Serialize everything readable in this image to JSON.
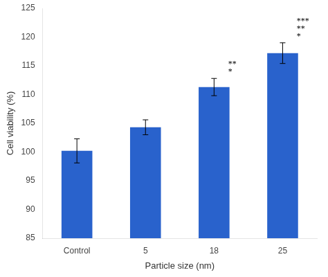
{
  "chart_data": {
    "type": "bar",
    "categories": [
      "Control",
      "5",
      "18",
      "25"
    ],
    "values": [
      100.2,
      104.3,
      111.3,
      117.2
    ],
    "errors": [
      2.1,
      1.3,
      1.5,
      1.8
    ],
    "color": "#2962cc",
    "xlabel": "Particle size (nm)",
    "ylabel": "Cell viability (%)",
    "ylim": [
      85,
      125
    ],
    "yticks": [
      85,
      90,
      95,
      100,
      105,
      110,
      115,
      120,
      125
    ],
    "grid": false,
    "annotations": [
      {
        "category": "18",
        "text": "*"
      },
      {
        "category": "18",
        "text": "**"
      },
      {
        "category": "25",
        "text": "*"
      },
      {
        "category": "25",
        "text": "**"
      },
      {
        "category": "25",
        "text": "***"
      }
    ]
  }
}
